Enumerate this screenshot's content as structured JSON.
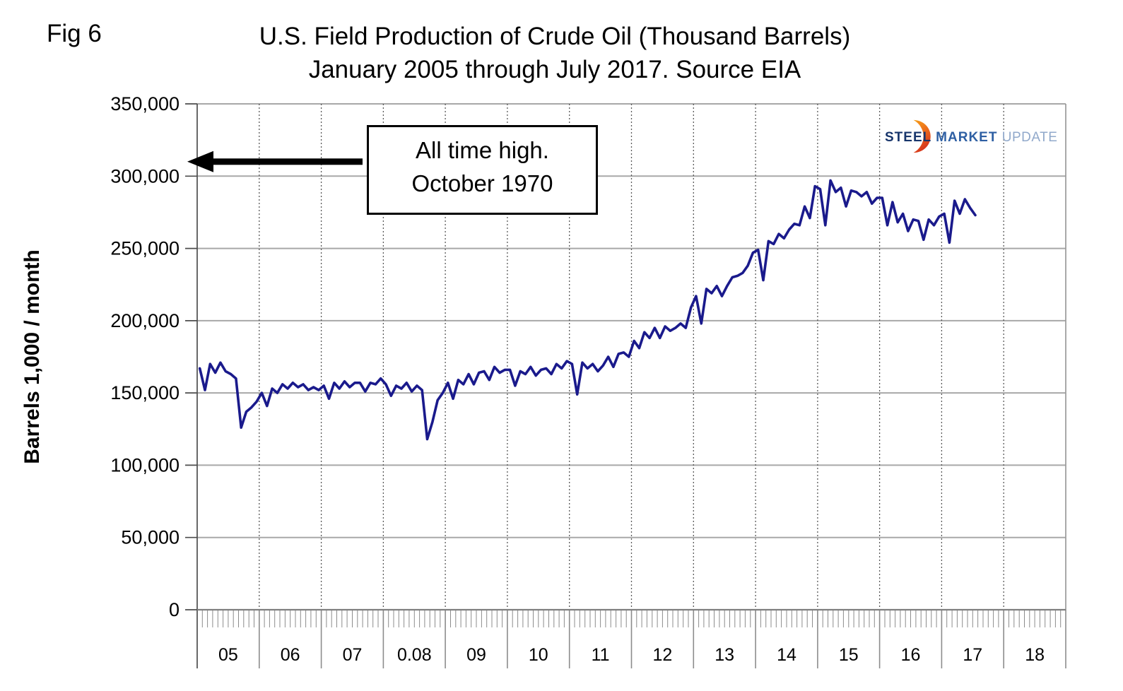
{
  "fig_label": "Fig 6",
  "title": {
    "line1": "U.S. Field Production of Crude Oil (Thousand Barrels)",
    "line2": "January 2005 through July 2017. Source EIA"
  },
  "y_axis_title": "Barrels 1,000 / month",
  "annotation": {
    "line1": "All time high.",
    "line2": "October 1970",
    "arrow_value": 310000
  },
  "logo": {
    "word1": "STEEL",
    "word2": "MARKET",
    "word3": "UPDATE",
    "word1_color": "#17356b",
    "word2_color": "#2e5fa3",
    "word3_color": "#91a9cb",
    "swoosh_color_top": "#f6a11b",
    "swoosh_color_bottom": "#d5341c"
  },
  "chart_data": {
    "type": "line",
    "title": "U.S. Field Production of Crude Oil (Thousand Barrels)",
    "subtitle": "January 2005 through July 2017. Source EIA",
    "xlabel": "",
    "ylabel": "Barrels 1,000 / month",
    "ylim": [
      0,
      350000
    ],
    "y_tick_step": 50000,
    "y_tick_labels": [
      "0",
      "50,000",
      "100,000",
      "150,000",
      "200,000",
      "250,000",
      "300,000",
      "350,000"
    ],
    "x_categories": [
      "05",
      "06",
      "07",
      "0.08",
      "09",
      "10",
      "11",
      "12",
      "13",
      "14",
      "15",
      "16",
      "17",
      "18"
    ],
    "grid": {
      "horizontal": "solid gray",
      "vertical": "dotted at year boundaries",
      "minor_x_ticks": "monthly"
    },
    "legend": "none",
    "line_color": "#1a1a8c",
    "gridline_color": "#a8a8a8",
    "dotted_grid_color": "#595959",
    "axis_color": "#7f7f7f",
    "series": [
      {
        "name": "U.S. monthly crude oil field production",
        "unit": "thousand barrels per month",
        "start": "2005-01",
        "end": "2017-07",
        "values": [
          167000,
          152000,
          170000,
          164000,
          171000,
          165000,
          163000,
          160000,
          126000,
          137000,
          140000,
          144000,
          150000,
          141000,
          153000,
          150000,
          156000,
          153000,
          157000,
          154000,
          156000,
          152000,
          154000,
          152000,
          155000,
          146000,
          157000,
          153000,
          158000,
          154000,
          157000,
          157000,
          151000,
          157000,
          156000,
          160000,
          156000,
          148000,
          155000,
          153000,
          157000,
          151000,
          155000,
          152000,
          118000,
          130000,
          145000,
          150000,
          157000,
          146000,
          159000,
          156000,
          163000,
          156000,
          164000,
          165000,
          159000,
          168000,
          164000,
          166000,
          166000,
          155000,
          165000,
          163000,
          168000,
          162000,
          166000,
          167000,
          163000,
          170000,
          167000,
          172000,
          170000,
          149000,
          171000,
          167000,
          170000,
          165000,
          169000,
          175000,
          168000,
          177000,
          178000,
          175000,
          186000,
          181000,
          192000,
          188000,
          195000,
          188000,
          196000,
          193000,
          195000,
          198000,
          195000,
          209000,
          217000,
          198000,
          222000,
          219000,
          224000,
          217000,
          224000,
          230000,
          231000,
          233000,
          238000,
          247000,
          249000,
          228000,
          255000,
          253000,
          260000,
          257000,
          263000,
          267000,
          266000,
          279000,
          271000,
          293000,
          291000,
          266000,
          297000,
          289000,
          292000,
          279000,
          290000,
          289000,
          286000,
          289000,
          281000,
          285000,
          285000,
          266000,
          282000,
          268000,
          274000,
          262000,
          270000,
          269000,
          256000,
          270000,
          266000,
          272000,
          274000,
          254000,
          283000,
          274000,
          284000,
          278000,
          273000
        ]
      }
    ],
    "annotations": [
      {
        "text": "All time high. October 1970",
        "arrow_points_to_value": 310000,
        "arrow_direction": "left"
      }
    ]
  }
}
